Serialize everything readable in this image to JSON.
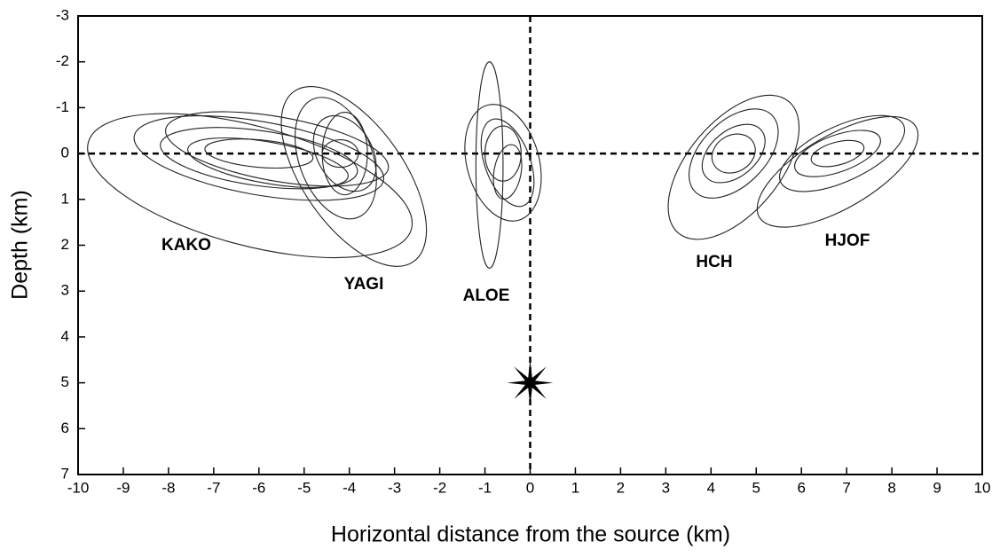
{
  "chart_data": {
    "type": "ellipse",
    "x_label": "Horizontal distance from the source (km)",
    "y_label": "Depth (km)",
    "xlim": [
      -10,
      10
    ],
    "ylim": [
      7,
      -3
    ],
    "xticks": [
      -10,
      -9,
      -8,
      -7,
      -6,
      -5,
      -4,
      -3,
      -2,
      -1,
      0,
      1,
      2,
      3,
      4,
      5,
      6,
      7,
      8,
      9,
      10
    ],
    "yticks": [
      -3,
      -2,
      -1,
      0,
      1,
      2,
      3,
      4,
      5,
      6,
      7
    ],
    "hlines": [
      0
    ],
    "vlines": [
      0
    ],
    "source": {
      "x": 0,
      "y": 5
    },
    "groups": [
      {
        "name": "KAKO",
        "ellipses": [
          {
            "x": -6.2,
            "y": 0.7,
            "rx": 3.7,
            "ry": 1.3,
            "angle": 15
          },
          {
            "x": -6,
            "y": 0.1,
            "rx": 2.8,
            "ry": 0.8,
            "angle": 10
          },
          {
            "x": -5.6,
            "y": -0.1,
            "rx": 2.5,
            "ry": 0.7,
            "angle": 10
          },
          {
            "x": -6,
            "y": 0.1,
            "rx": 2.2,
            "ry": 0.6,
            "angle": 8
          },
          {
            "x": -5.8,
            "y": 0.2,
            "rx": 1.8,
            "ry": 0.45,
            "angle": 10
          },
          {
            "x": -6,
            "y": 0,
            "rx": 1.2,
            "ry": 0.3,
            "angle": 5
          }
        ]
      },
      {
        "name": "YAGI",
        "ellipses": [
          {
            "x": -3.9,
            "y": 0.5,
            "rx": 2.3,
            "ry": 1.1,
            "angle": 55
          },
          {
            "x": -4.3,
            "y": 0.1,
            "rx": 1.4,
            "ry": 0.8,
            "angle": 70
          },
          {
            "x": -4.1,
            "y": 0,
            "rx": 0.9,
            "ry": 0.6,
            "angle": 60
          },
          {
            "x": -4.1,
            "y": 0,
            "rx": 0.5,
            "ry": 0.9,
            "angle": 0
          },
          {
            "x": -4.2,
            "y": 0,
            "rx": 0.4,
            "ry": 0.3,
            "angle": 0
          }
        ]
      },
      {
        "name": "ALOE",
        "ellipses": [
          {
            "x": -0.9,
            "y": 0.25,
            "rx": 0.3,
            "ry": 2.25,
            "angle": 0
          },
          {
            "x": -0.6,
            "y": 0.2,
            "rx": 0.8,
            "ry": 1.3,
            "angle": -15
          },
          {
            "x": -0.5,
            "y": 0.2,
            "rx": 0.5,
            "ry": 1,
            "angle": -20
          },
          {
            "x": -0.6,
            "y": 0,
            "rx": 0.4,
            "ry": 0.6,
            "angle": 0
          },
          {
            "x": -0.5,
            "y": 0.4,
            "rx": 0.3,
            "ry": 0.6,
            "angle": 10
          }
        ]
      },
      {
        "name": "HCH",
        "ellipses": [
          {
            "x": 4.5,
            "y": 0.3,
            "rx": 1.9,
            "ry": 1,
            "angle": -50
          },
          {
            "x": 4.5,
            "y": 0,
            "rx": 1.2,
            "ry": 0.7,
            "angle": -45
          },
          {
            "x": 4.5,
            "y": 0,
            "rx": 0.8,
            "ry": 0.5,
            "angle": -40
          },
          {
            "x": 4.5,
            "y": 0,
            "rx": 0.5,
            "ry": 0.4,
            "angle": -30
          }
        ]
      },
      {
        "name": "HJOF",
        "ellipses": [
          {
            "x": 6.8,
            "y": 0.4,
            "rx": 2,
            "ry": 0.8,
            "angle": -30
          },
          {
            "x": 6.9,
            "y": 0,
            "rx": 1.5,
            "ry": 0.6,
            "angle": -25
          },
          {
            "x": 6.8,
            "y": 0,
            "rx": 1,
            "ry": 0.4,
            "angle": -20
          },
          {
            "x": 6.8,
            "y": 0,
            "rx": 0.6,
            "ry": 0.25,
            "angle": -15
          }
        ]
      }
    ]
  }
}
